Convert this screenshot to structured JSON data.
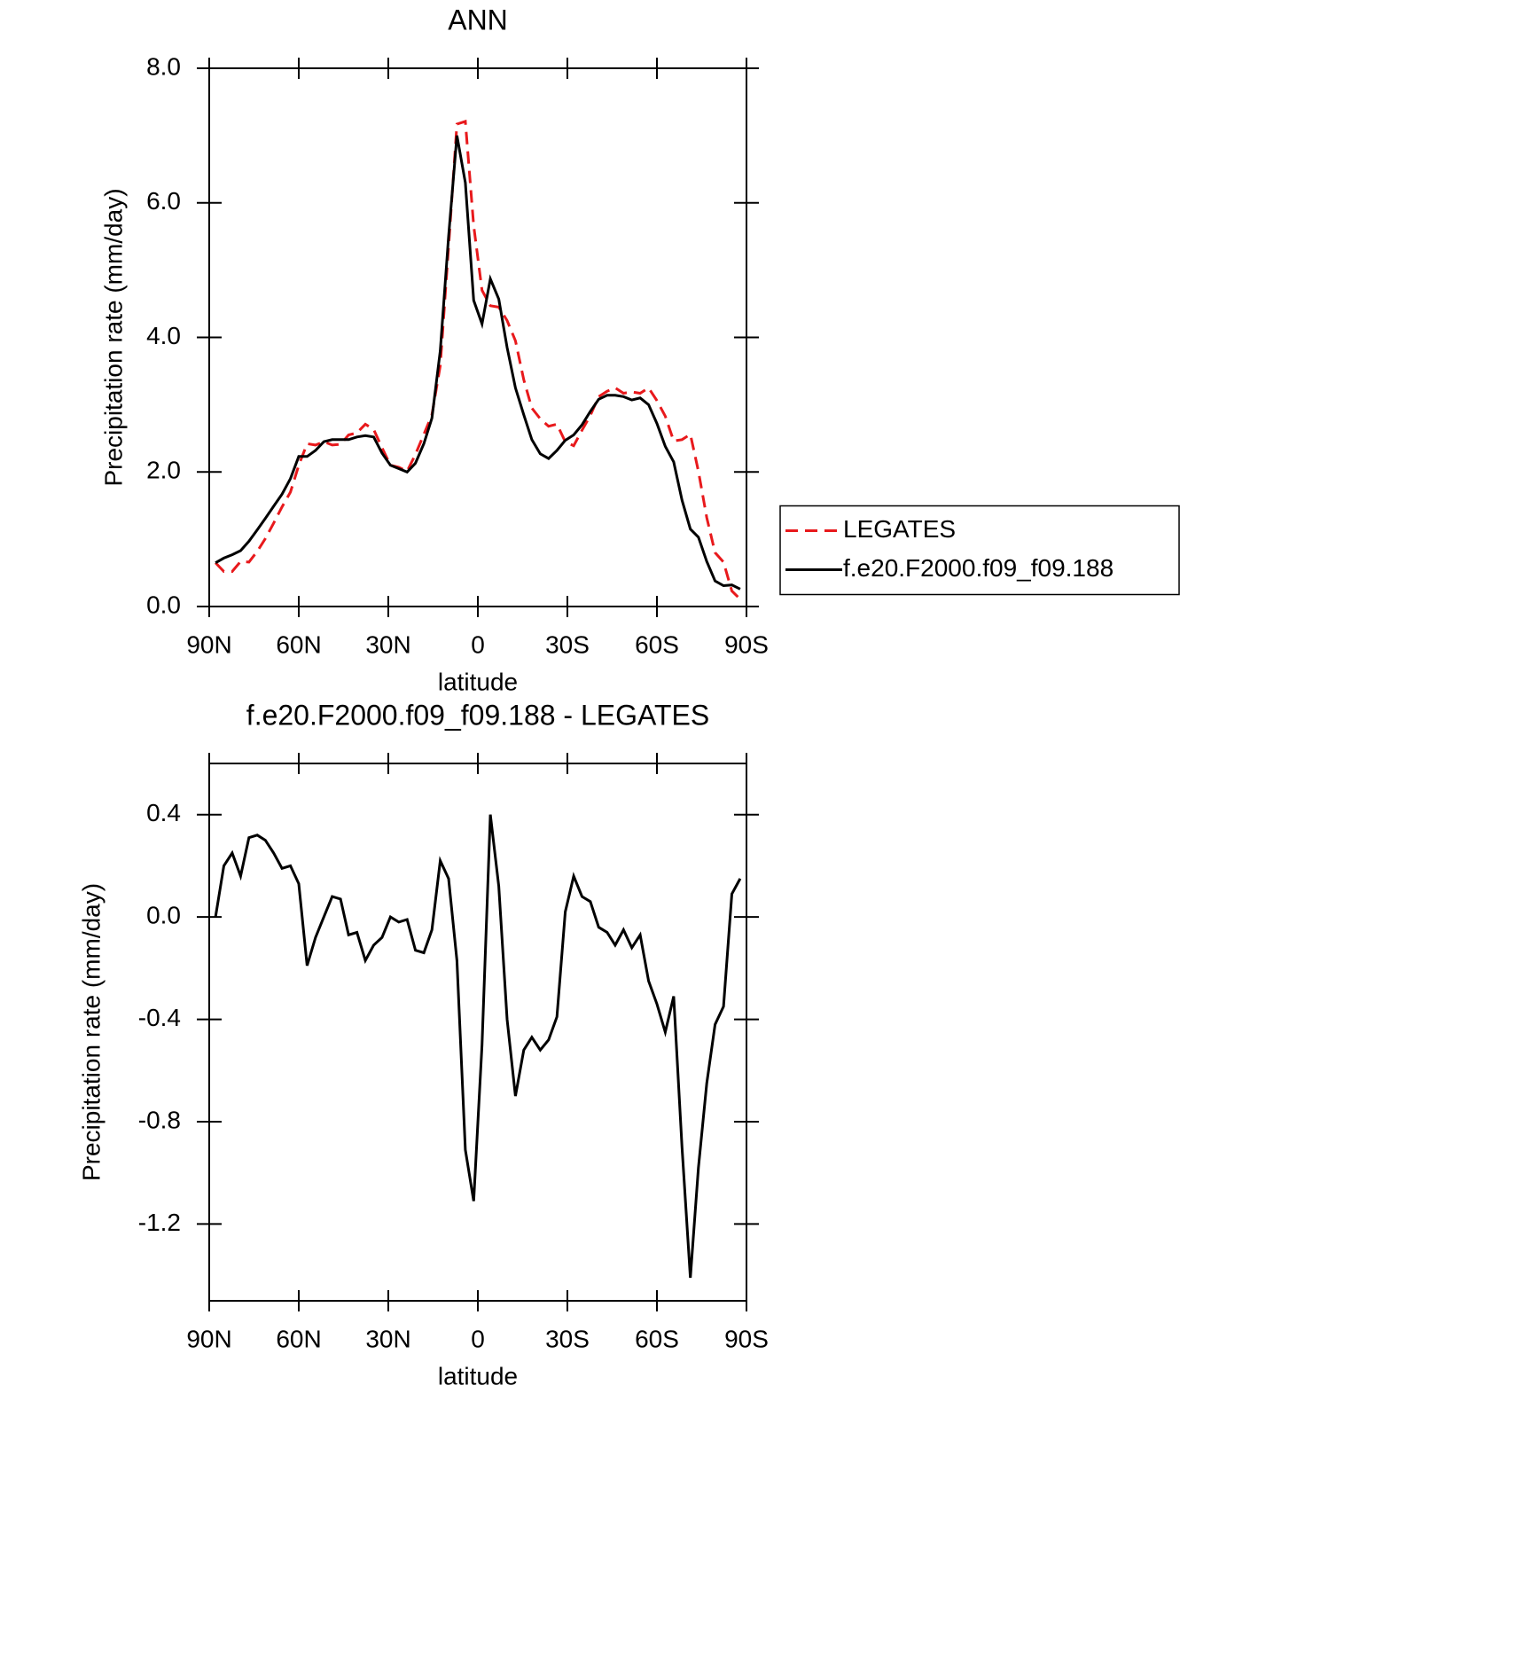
{
  "chart_data": [
    {
      "type": "line",
      "title": "ANN",
      "xlabel": "latitude",
      "ylabel": "Precipitation rate (mm/day)",
      "x": [
        87.9,
        85.1,
        82.3,
        79.5,
        76.7,
        73.9,
        71.2,
        68.4,
        65.6,
        62.8,
        60.0,
        57.2,
        54.4,
        51.6,
        48.8,
        46.0,
        43.3,
        40.5,
        37.7,
        34.9,
        32.1,
        29.3,
        26.5,
        23.7,
        20.9,
        18.1,
        15.4,
        12.6,
        9.8,
        7.0,
        4.2,
        1.4,
        -1.4,
        -4.2,
        -7.0,
        -9.8,
        -12.6,
        -15.4,
        -18.1,
        -20.9,
        -23.7,
        -26.5,
        -29.3,
        -32.1,
        -34.9,
        -37.7,
        -40.5,
        -43.3,
        -46.0,
        -48.8,
        -51.6,
        -54.4,
        -57.2,
        -60.0,
        -62.8,
        -65.6,
        -68.4,
        -71.2,
        -73.9,
        -76.7,
        -79.5,
        -82.3,
        -85.1,
        -87.9
      ],
      "xlim": [
        90,
        -90
      ],
      "xticks": [
        {
          "value": 90,
          "label": "90N"
        },
        {
          "value": 60,
          "label": "60N"
        },
        {
          "value": 30,
          "label": "30N"
        },
        0,
        {
          "value": -30,
          "label": "30S"
        },
        {
          "value": -60,
          "label": "60S"
        },
        {
          "value": -90,
          "label": "90S"
        }
      ],
      "ylim": [
        0,
        8
      ],
      "yticks": [
        {
          "value": 0,
          "label": "0.0"
        },
        {
          "value": 2,
          "label": "2.0"
        },
        {
          "value": 4,
          "label": "4.0"
        },
        {
          "value": 6,
          "label": "6.0"
        },
        {
          "value": 8,
          "label": "8.0"
        }
      ],
      "legend": "right",
      "series": [
        {
          "name": "LEGATES",
          "color": "#e8191c",
          "dashed": true,
          "values": [
            0.65,
            0.52,
            0.52,
            0.67,
            0.66,
            0.82,
            1.01,
            1.24,
            1.48,
            1.7,
            2.1,
            2.42,
            2.4,
            2.45,
            2.4,
            2.41,
            2.55,
            2.58,
            2.71,
            2.63,
            2.36,
            2.1,
            2.07,
            2.01,
            2.26,
            2.56,
            2.85,
            3.58,
            5.35,
            7.17,
            7.21,
            5.66,
            4.7,
            4.47,
            4.45,
            4.25,
            3.95,
            3.37,
            2.95,
            2.79,
            2.68,
            2.71,
            2.45,
            2.39,
            2.62,
            2.84,
            3.12,
            3.2,
            3.25,
            3.17,
            3.19,
            3.17,
            3.25,
            3.06,
            2.83,
            2.46,
            2.48,
            2.56,
            2.01,
            1.32,
            0.8,
            0.66,
            0.23,
            0.11
          ]
        },
        {
          "name": "f.e20.F2000.f09_f09.188",
          "color": "#000000",
          "dashed": false,
          "values": [
            0.65,
            0.72,
            0.77,
            0.83,
            0.97,
            1.14,
            1.31,
            1.49,
            1.67,
            1.9,
            2.23,
            2.23,
            2.32,
            2.45,
            2.48,
            2.48,
            2.48,
            2.52,
            2.54,
            2.52,
            2.28,
            2.1,
            2.05,
            2.0,
            2.13,
            2.42,
            2.8,
            3.8,
            5.5,
            7.0,
            6.3,
            4.55,
            4.2,
            4.87,
            4.57,
            3.85,
            3.25,
            2.85,
            2.48,
            2.27,
            2.2,
            2.32,
            2.47,
            2.55,
            2.7,
            2.9,
            3.08,
            3.14,
            3.14,
            3.12,
            3.07,
            3.1,
            3.0,
            2.72,
            2.38,
            2.15,
            1.58,
            1.15,
            1.03,
            0.67,
            0.38,
            0.31,
            0.32,
            0.26
          ]
        }
      ]
    },
    {
      "type": "line",
      "title": "f.e20.F2000.f09_f09.188 - LEGATES",
      "xlabel": "latitude",
      "ylabel": "Precipitation rate (mm/day)",
      "x": [
        87.9,
        85.1,
        82.3,
        79.5,
        76.7,
        73.9,
        71.2,
        68.4,
        65.6,
        62.8,
        60.0,
        57.2,
        54.4,
        51.6,
        48.8,
        46.0,
        43.3,
        40.5,
        37.7,
        34.9,
        32.1,
        29.3,
        26.5,
        23.7,
        20.9,
        18.1,
        15.4,
        12.6,
        9.8,
        7.0,
        4.2,
        1.4,
        -1.4,
        -4.2,
        -7.0,
        -9.8,
        -12.6,
        -15.4,
        -18.1,
        -20.9,
        -23.7,
        -26.5,
        -29.3,
        -32.1,
        -34.9,
        -37.7,
        -40.5,
        -43.3,
        -46.0,
        -48.8,
        -51.6,
        -54.4,
        -57.2,
        -60.0,
        -62.8,
        -65.6,
        -68.4,
        -71.2,
        -73.9,
        -76.7,
        -79.5,
        -82.3,
        -85.1,
        -87.9
      ],
      "xlim": [
        90,
        -90
      ],
      "xticks": [
        {
          "value": 90,
          "label": "90N"
        },
        {
          "value": 60,
          "label": "60N"
        },
        {
          "value": 30,
          "label": "30N"
        },
        0,
        {
          "value": -30,
          "label": "30S"
        },
        {
          "value": -60,
          "label": "60S"
        },
        {
          "value": -90,
          "label": "90S"
        }
      ],
      "ylim": [
        -1.5,
        0.6
      ],
      "yticks": [
        -1.2,
        -0.8,
        -0.4,
        {
          "value": 0,
          "label": "0.0"
        },
        0.4
      ],
      "series": [
        {
          "color": "#000000",
          "dashed": false,
          "values": [
            0,
            0.2,
            0.25,
            0.16,
            0.31,
            0.32,
            0.3,
            0.25,
            0.19,
            0.2,
            0.13,
            -0.19,
            -0.08,
            0.0,
            0.08,
            0.07,
            -0.07,
            -0.06,
            -0.17,
            -0.11,
            -0.08,
            0.0,
            -0.02,
            -0.01,
            -0.13,
            -0.14,
            -0.05,
            0.22,
            0.15,
            -0.17,
            -0.91,
            -1.11,
            -0.5,
            0.4,
            0.12,
            -0.4,
            -0.7,
            -0.52,
            -0.47,
            -0.52,
            -0.48,
            -0.39,
            0.02,
            0.16,
            0.08,
            0.06,
            -0.04,
            -0.06,
            -0.11,
            -0.05,
            -0.12,
            -0.07,
            -0.25,
            -0.34,
            -0.45,
            -0.31,
            -0.9,
            -1.41,
            -0.98,
            -0.65,
            -0.42,
            -0.35,
            0.09,
            0.15
          ]
        }
      ]
    }
  ]
}
